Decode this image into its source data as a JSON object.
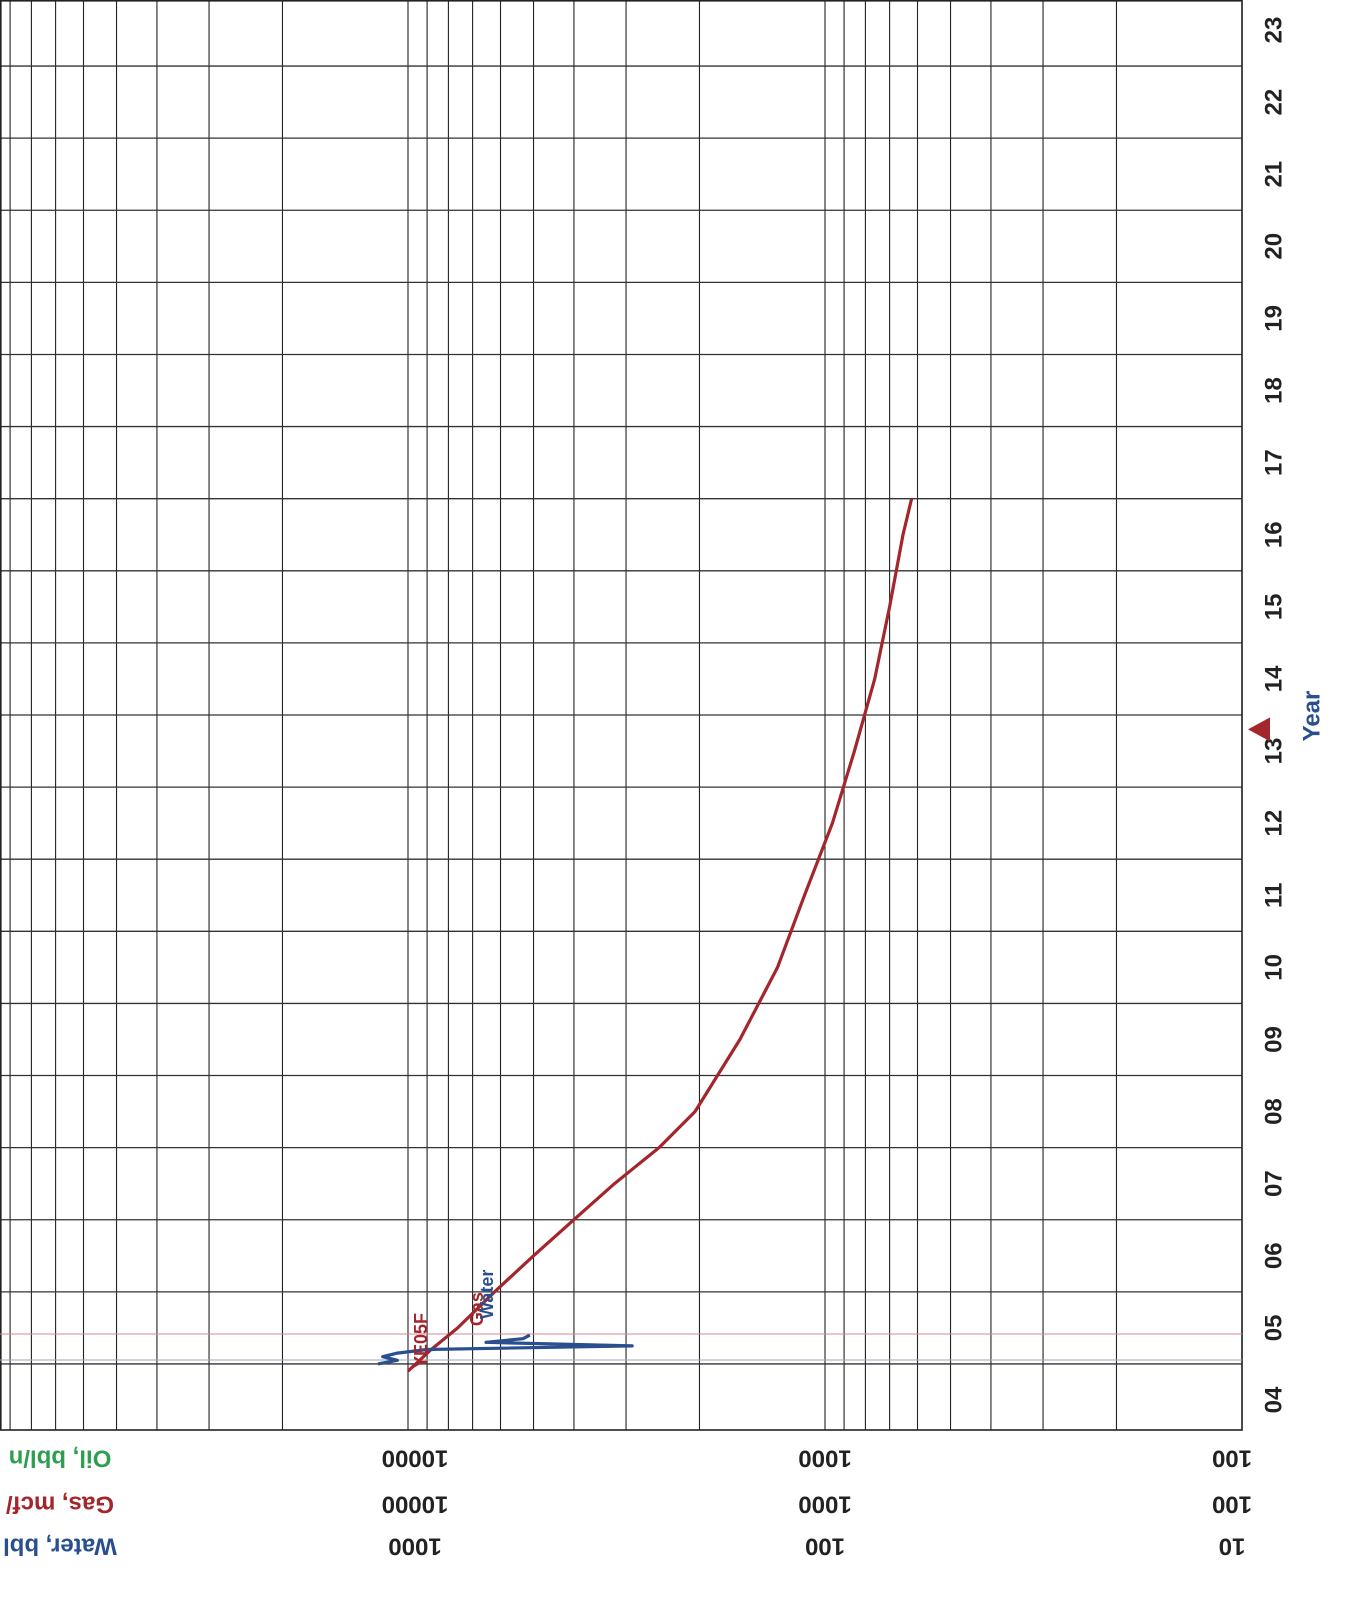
{
  "chart_data": {
    "type": "line",
    "orientation": "rotated-90",
    "x_axis": {
      "title": "Year",
      "tick_labels": [
        "04",
        "05",
        "06",
        "07",
        "08",
        "09",
        "10",
        "11",
        "12",
        "13",
        "14",
        "15",
        "16",
        "17",
        "18",
        "19",
        "20",
        "21",
        "22",
        "23"
      ],
      "range": [
        2004,
        2023
      ]
    },
    "y_axes": [
      {
        "title": "Oil, bbl/n",
        "color": "#2e9e4f",
        "scale": "log",
        "tick_labels": [
          "10000",
          "1000",
          "100"
        ],
        "range": [
          100,
          100000
        ]
      },
      {
        "title": "Gas, mcf/",
        "color": "#a3262d",
        "scale": "log",
        "tick_labels": [
          "10000",
          "1000",
          "100"
        ],
        "range": [
          100,
          100000
        ]
      },
      {
        "title": "Water, bbl",
        "color": "#2a4f8f",
        "scale": "log",
        "tick_labels": [
          "1000",
          "100",
          "10"
        ],
        "range": [
          10,
          10000
        ]
      }
    ],
    "series": [
      {
        "name": "Gas",
        "color": "#a3262d",
        "axis": "Gas, mcf/",
        "points": [
          [
            2004.4,
            10000
          ],
          [
            2004.7,
            8800
          ],
          [
            2005.0,
            7600
          ],
          [
            2005.5,
            6200
          ],
          [
            2006.0,
            5000
          ],
          [
            2006.5,
            4000
          ],
          [
            2007.0,
            3200
          ],
          [
            2007.5,
            2500
          ],
          [
            2008.0,
            2050
          ],
          [
            2009.0,
            1600
          ],
          [
            2010.0,
            1300
          ],
          [
            2011.0,
            1120
          ],
          [
            2012.0,
            960
          ],
          [
            2013.0,
            850
          ],
          [
            2014.0,
            760
          ],
          [
            2015.0,
            700
          ],
          [
            2016.0,
            650
          ],
          [
            2016.5,
            620
          ]
        ]
      },
      {
        "name": "Water",
        "color": "#2a4f8f",
        "axis": "Water, bbl",
        "points": [
          [
            2004.5,
            1180
          ],
          [
            2004.55,
            1060
          ],
          [
            2004.6,
            1150
          ],
          [
            2004.65,
            1060
          ],
          [
            2004.7,
            900
          ],
          [
            2004.75,
            290
          ],
          [
            2004.8,
            650
          ],
          [
            2004.85,
            530
          ],
          [
            2004.9,
            510
          ]
        ]
      }
    ],
    "annotations": [
      {
        "text": "YE05F",
        "color": "#a3262d"
      },
      {
        "marker": "triangle",
        "color": "#a3262d",
        "x": 2013.3
      }
    ],
    "grid": true
  }
}
